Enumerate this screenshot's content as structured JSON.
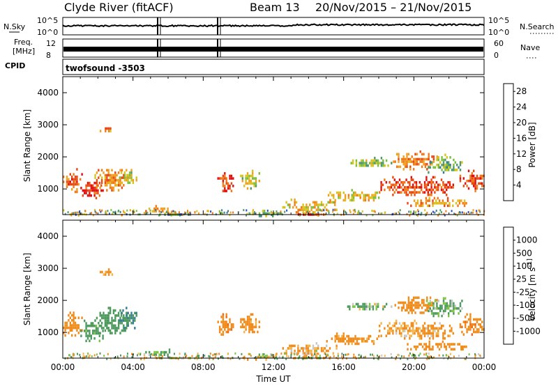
{
  "header": {
    "station": "Clyde River (fitACF)",
    "beam": "Beam 13",
    "date_range": "20/Nov/2015 – 21/Nov/2015"
  },
  "top_panels": {
    "nsky_label": "N.Sky",
    "nsky_ticks": [
      "10^5",
      "10^0"
    ],
    "nsearch_label": "N.Search",
    "nsearch_ticks": [
      "10^5",
      "10^0"
    ],
    "freq_label": "Freq.",
    "freq_unit": "[MHz]",
    "freq_ticks": [
      "12",
      "8"
    ],
    "nave_label": "Nave",
    "nave_ticks": [
      "60",
      "0"
    ],
    "cpid_label": "CPID",
    "cpid_value": "twofsound -3503"
  },
  "chart_data": [
    {
      "type": "heatmap",
      "name": "power",
      "ylabel": "Slant Range [km]",
      "xlabel": "",
      "x_ticks": [
        "00:00",
        "04:00",
        "08:00",
        "12:00",
        "16:00",
        "20:00",
        "00:00"
      ],
      "y_ticks": [
        "1000",
        "2000",
        "3000",
        "4000"
      ],
      "ylim": [
        200,
        4500
      ],
      "xlim_hours": [
        0,
        24
      ],
      "colorbar": {
        "label": "Power [dB]",
        "ticks": [
          "4",
          "8",
          "12",
          "16",
          "20",
          "24",
          "28"
        ],
        "range": [
          0,
          30
        ],
        "colors": [
          "#0000ff",
          "#2b4fbf",
          "#3d7a8f",
          "#4d9a6a",
          "#7bbf3d",
          "#d8c41c",
          "#f0a020",
          "#f07a18",
          "#e84a14",
          "#e01010"
        ]
      },
      "regions": [
        {
          "x0": 0.0,
          "x1": 1.1,
          "y0": 900,
          "y1": 1650,
          "v": 24
        },
        {
          "x0": 1.0,
          "x1": 2.3,
          "y0": 700,
          "y1": 1300,
          "v": 28
        },
        {
          "x0": 1.8,
          "x1": 3.7,
          "y0": 950,
          "y1": 1700,
          "v": 22
        },
        {
          "x0": 3.2,
          "x1": 4.2,
          "y0": 1150,
          "y1": 1700,
          "v": 16
        },
        {
          "x0": 2.1,
          "x1": 2.8,
          "y0": 2800,
          "y1": 3000,
          "v": 22
        },
        {
          "x0": 4.6,
          "x1": 6.4,
          "y0": 300,
          "y1": 500,
          "v": 20
        },
        {
          "x0": 5.3,
          "x1": 7.3,
          "y0": 180,
          "y1": 320,
          "v": 10
        },
        {
          "x0": 8.8,
          "x1": 9.7,
          "y0": 900,
          "y1": 1600,
          "v": 26
        },
        {
          "x0": 10.1,
          "x1": 11.2,
          "y0": 1000,
          "y1": 1600,
          "v": 16
        },
        {
          "x0": 10.3,
          "x1": 12.6,
          "y0": 180,
          "y1": 350,
          "v": 12
        },
        {
          "x0": 12.5,
          "x1": 15.6,
          "y0": 300,
          "y1": 700,
          "v": 18
        },
        {
          "x0": 13.0,
          "x1": 15.0,
          "y0": 180,
          "y1": 320,
          "v": 28
        },
        {
          "x0": 15.0,
          "x1": 18.0,
          "y0": 650,
          "y1": 1000,
          "v": 18
        },
        {
          "x0": 16.2,
          "x1": 18.7,
          "y0": 1700,
          "y1": 2000,
          "v": 14
        },
        {
          "x0": 18.0,
          "x1": 22.2,
          "y0": 800,
          "y1": 1400,
          "v": 26
        },
        {
          "x0": 18.8,
          "x1": 21.3,
          "y0": 1600,
          "y1": 2200,
          "v": 22
        },
        {
          "x0": 20.6,
          "x1": 22.7,
          "y0": 1500,
          "y1": 2100,
          "v": 12
        },
        {
          "x0": 19.6,
          "x1": 23.0,
          "y0": 450,
          "y1": 750,
          "v": 20
        },
        {
          "x0": 22.6,
          "x1": 24.0,
          "y0": 950,
          "y1": 1600,
          "v": 26
        }
      ]
    },
    {
      "type": "heatmap",
      "name": "velocity",
      "ylabel": "Slant Range [km]",
      "xlabel": "Time UT",
      "x_ticks": [
        "00:00",
        "04:00",
        "08:00",
        "12:00",
        "16:00",
        "20:00",
        "00:00"
      ],
      "y_ticks": [
        "1000",
        "2000",
        "3000",
        "4000"
      ],
      "ylim": [
        200,
        4500
      ],
      "xlim_hours": [
        0,
        24
      ],
      "colorbar": {
        "label": "Velocity [m s^-1]",
        "ticks": [
          "1000",
          "500",
          "100",
          "25",
          "-25",
          "-100",
          "-500",
          "-1000"
        ],
        "colors": [
          "#2a4eb0",
          "#3a7e96",
          "#4e9a5e",
          "#7dc443",
          "#c8c8c8",
          "#f4b64a",
          "#f08c1c",
          "#f06818",
          "#e82a14"
        ]
      },
      "regions": [
        {
          "x0": 0.0,
          "x1": 1.1,
          "y0": 900,
          "y1": 1650,
          "v": -300
        },
        {
          "x0": 1.0,
          "x1": 2.3,
          "y0": 700,
          "y1": 1400,
          "v": 200
        },
        {
          "x0": 1.8,
          "x1": 3.7,
          "y0": 950,
          "y1": 1800,
          "v": 300
        },
        {
          "x0": 3.2,
          "x1": 4.2,
          "y0": 1150,
          "y1": 1800,
          "v": 500
        },
        {
          "x0": 2.1,
          "x1": 2.8,
          "y0": 2800,
          "y1": 3000,
          "v": -200
        },
        {
          "x0": 4.6,
          "x1": 6.4,
          "y0": 300,
          "y1": 500,
          "v": 60
        },
        {
          "x0": 5.3,
          "x1": 7.3,
          "y0": 180,
          "y1": 320,
          "v": 0
        },
        {
          "x0": 8.8,
          "x1": 9.7,
          "y0": 900,
          "y1": 1600,
          "v": -400
        },
        {
          "x0": 10.1,
          "x1": 11.2,
          "y0": 1000,
          "y1": 1600,
          "v": -200
        },
        {
          "x0": 10.3,
          "x1": 12.6,
          "y0": 180,
          "y1": 350,
          "v": 0
        },
        {
          "x0": 12.5,
          "x1": 15.6,
          "y0": 300,
          "y1": 700,
          "v": -100
        },
        {
          "x0": 13.0,
          "x1": 15.0,
          "y0": 180,
          "y1": 320,
          "v": 0
        },
        {
          "x0": 15.0,
          "x1": 18.0,
          "y0": 650,
          "y1": 1000,
          "v": -200
        },
        {
          "x0": 16.2,
          "x1": 18.7,
          "y0": 1700,
          "y1": 2000,
          "v": 80
        },
        {
          "x0": 18.0,
          "x1": 22.2,
          "y0": 800,
          "y1": 1400,
          "v": -150
        },
        {
          "x0": 18.8,
          "x1": 21.3,
          "y0": 1600,
          "y1": 2200,
          "v": -350
        },
        {
          "x0": 20.6,
          "x1": 22.7,
          "y0": 1500,
          "y1": 2100,
          "v": 150
        },
        {
          "x0": 19.6,
          "x1": 23.0,
          "y0": 450,
          "y1": 750,
          "v": -300
        },
        {
          "x0": 22.6,
          "x1": 24.0,
          "y0": 950,
          "y1": 1600,
          "v": -400
        }
      ]
    }
  ]
}
